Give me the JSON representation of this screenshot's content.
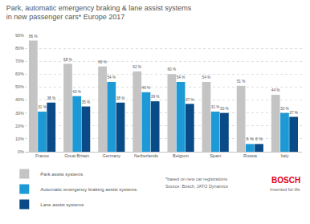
{
  "chart_data": {
    "type": "bar",
    "title": "Park, automatic emergency braking & lane assist systems\nin new passenger cars* Europe 2017",
    "categories": [
      "France",
      "Great Britain",
      "Germany",
      "Netherlands",
      "Belgium",
      "Spain",
      "Russia",
      "Italy"
    ],
    "series": [
      {
        "name": "Park assist systems",
        "color": "#c4c4c4",
        "values": [
          86,
          68,
          66,
          62,
          60,
          54,
          51,
          44
        ],
        "value_labels": [
          "86 %",
          "68 %",
          "66 %",
          "62 %",
          "60 %",
          "54 %",
          "51 %",
          "44 %"
        ]
      },
      {
        "name": "Automatic emergency braking assist systems",
        "color": "#1d9ad6",
        "values": [
          31,
          43,
          54,
          46,
          54,
          31,
          6,
          30
        ],
        "value_labels": [
          "31 %",
          "43 %",
          "54 %",
          "46 %",
          "54 %",
          "31 %",
          "6 %",
          "30 %"
        ]
      },
      {
        "name": "Lane assist systems",
        "color": "#0a4a86",
        "values": [
          38,
          35,
          38,
          39,
          37,
          30,
          6,
          27
        ],
        "value_labels": [
          "38 %",
          "35 %",
          "38 %",
          "39 %",
          "37 %",
          "30 %",
          "6 %",
          "27 %"
        ]
      }
    ],
    "ylim": [
      0,
      90
    ],
    "yticks": [
      {
        "value": 0,
        "label": "0%"
      },
      {
        "value": 10,
        "label": "10%"
      },
      {
        "value": 20,
        "label": "20%"
      },
      {
        "value": 30,
        "label": "30%"
      },
      {
        "value": 40,
        "label": "40%"
      },
      {
        "value": 50,
        "label": "50%"
      },
      {
        "value": 60,
        "label": "60%"
      },
      {
        "value": 70,
        "label": "70%"
      },
      {
        "value": 80,
        "label": "80%"
      },
      {
        "value": 90,
        "label": "90%"
      }
    ],
    "grid": true,
    "data_labels": true,
    "legend": "bottom left",
    "annotations": [
      "*based on new car registrations",
      "Source: Bosch, JATO Dynamics",
      "BOSCH",
      "Invented for life"
    ]
  }
}
